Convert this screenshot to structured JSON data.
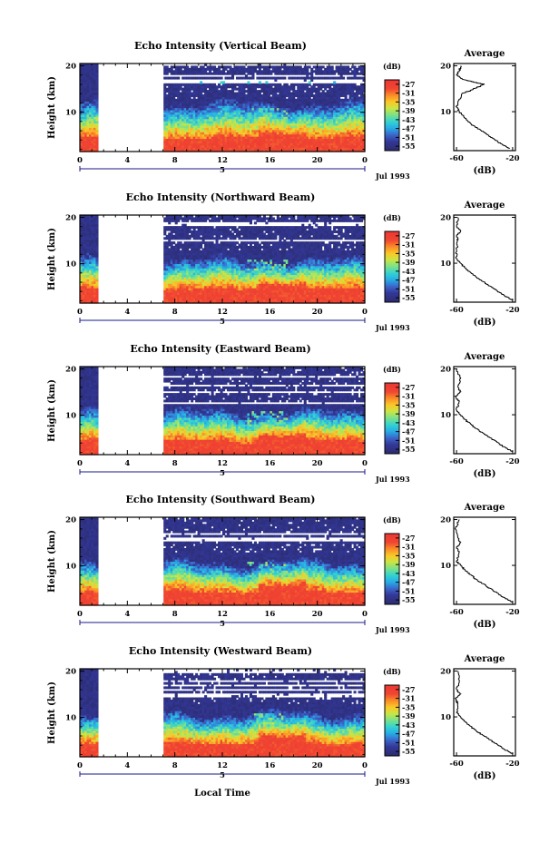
{
  "figure": {
    "date_label": "Jul 1993",
    "day_label": "5",
    "xlabel": "Local Time",
    "ylabel": "Height (km)",
    "avg_title": "Average",
    "avg_xlabel": "(dB)",
    "cb_label": "(dB)"
  },
  "chart_data": [
    {
      "type": "heatmap",
      "title": "Echo Intensity (Vertical Beam)",
      "xlabel": "",
      "ylabel": "Height (km)",
      "xlim": [
        0,
        24
      ],
      "ylim": [
        1.5,
        20.5
      ],
      "x_ticks": [
        "0",
        "4",
        "8",
        "12",
        "16",
        "20",
        "0"
      ],
      "y_ticks": [
        "20",
        "10"
      ],
      "data_gap_hours": [
        1.5,
        7
      ],
      "colorbar": {
        "label": "(dB)",
        "ticks": [
          -27,
          -31,
          -35,
          -39,
          -43,
          -47,
          -51,
          -55
        ]
      },
      "profile_features": {
        "noise_floor_km": 12,
        "layer_km": 16.5
      },
      "average_profile": {
        "title": "Average",
        "xlabel": "(dB)",
        "x_ticks": [
          "-60",
          "-20"
        ],
        "y_ticks": [
          "20",
          "10"
        ],
        "x": [
          -22,
          -28,
          -33,
          -38,
          -43,
          -48,
          -52,
          -55,
          -58,
          -60,
          -59,
          -56,
          -40,
          -55,
          -60,
          -58,
          -57
        ],
        "y": [
          2,
          3,
          4,
          5,
          6,
          7,
          8,
          9,
          10,
          11,
          12,
          14,
          16,
          17,
          18,
          19,
          20
        ]
      }
    },
    {
      "type": "heatmap",
      "title": "Echo Intensity (Northward Beam)",
      "xlabel": "",
      "ylabel": "Height (km)",
      "xlim": [
        0,
        24
      ],
      "ylim": [
        1.5,
        20.5
      ],
      "x_ticks": [
        "0",
        "4",
        "8",
        "12",
        "16",
        "20",
        "0"
      ],
      "y_ticks": [
        "20",
        "10"
      ],
      "data_gap_hours": [
        1.5,
        7
      ],
      "colorbar": {
        "label": "(dB)",
        "ticks": [
          -27,
          -31,
          -35,
          -39,
          -43,
          -47,
          -51,
          -55
        ]
      },
      "profile_features": {
        "noise_floor_km": 11,
        "layer_km": 0
      },
      "average_profile": {
        "title": "Average",
        "xlabel": "(dB)",
        "x_ticks": [
          "-60",
          "-20"
        ],
        "y_ticks": [
          "20",
          "10"
        ],
        "x": [
          -20,
          -26,
          -31,
          -36,
          -41,
          -46,
          -50,
          -54,
          -57,
          -60,
          -60,
          -59,
          -60,
          -57,
          -60,
          -59
        ],
        "y": [
          2,
          3,
          4,
          5,
          6,
          7,
          8,
          9,
          10,
          11,
          13,
          15,
          16,
          17,
          18,
          20
        ]
      }
    },
    {
      "type": "heatmap",
      "title": "Echo Intensity (Eastward Beam)",
      "xlabel": "",
      "ylabel": "Height (km)",
      "xlim": [
        0,
        24
      ],
      "ylim": [
        1.5,
        20.5
      ],
      "x_ticks": [
        "0",
        "4",
        "8",
        "12",
        "16",
        "20",
        "0"
      ],
      "y_ticks": [
        "20",
        "10"
      ],
      "data_gap_hours": [
        1.5,
        7
      ],
      "colorbar": {
        "label": "(dB)",
        "ticks": [
          -27,
          -31,
          -35,
          -39,
          -43,
          -47,
          -51,
          -55
        ]
      },
      "profile_features": {
        "noise_floor_km": 11,
        "layer_km": 0
      },
      "average_profile": {
        "title": "Average",
        "xlabel": "(dB)",
        "x_ticks": [
          "-60",
          "-20"
        ],
        "y_ticks": [
          "20",
          "10"
        ],
        "x": [
          -20,
          -26,
          -31,
          -36,
          -41,
          -46,
          -50,
          -54,
          -57,
          -60,
          -58,
          -61,
          -57,
          -59,
          -57,
          -60
        ],
        "y": [
          2,
          3,
          4,
          5,
          6,
          7,
          8,
          9,
          10,
          11,
          13,
          14,
          15,
          16,
          18,
          20
        ]
      }
    },
    {
      "type": "heatmap",
      "title": "Echo Intensity (Southward Beam)",
      "xlabel": "",
      "ylabel": "Height (km)",
      "xlim": [
        0,
        24
      ],
      "ylim": [
        1.5,
        20.5
      ],
      "x_ticks": [
        "0",
        "4",
        "8",
        "12",
        "16",
        "20",
        "0"
      ],
      "y_ticks": [
        "20",
        "10"
      ],
      "data_gap_hours": [
        1.5,
        7
      ],
      "colorbar": {
        "label": "(dB)",
        "ticks": [
          -27,
          -31,
          -35,
          -39,
          -43,
          -47,
          -51,
          -55
        ]
      },
      "profile_features": {
        "noise_floor_km": 11,
        "layer_km": 0
      },
      "average_profile": {
        "title": "Average",
        "xlabel": "(dB)",
        "x_ticks": [
          "-60",
          "-20"
        ],
        "y_ticks": [
          "20",
          "10"
        ],
        "x": [
          -20,
          -26,
          -31,
          -36,
          -41,
          -46,
          -50,
          -54,
          -57,
          -60,
          -58,
          -60,
          -57,
          -59,
          -61,
          -58
        ],
        "y": [
          2,
          3,
          4,
          5,
          6,
          7,
          8,
          9,
          10,
          11,
          13,
          14,
          15,
          16,
          18,
          20
        ]
      }
    },
    {
      "type": "heatmap",
      "title": "Echo Intensity (Westward Beam)",
      "xlabel": "Local Time",
      "ylabel": "Height (km)",
      "xlim": [
        0,
        24
      ],
      "ylim": [
        1.5,
        20.5
      ],
      "x_ticks": [
        "0",
        "4",
        "8",
        "12",
        "16",
        "20",
        "0"
      ],
      "y_ticks": [
        "20",
        "10"
      ],
      "data_gap_hours": [
        1.5,
        7
      ],
      "colorbar": {
        "label": "(dB)",
        "ticks": [
          -27,
          -31,
          -35,
          -39,
          -43,
          -47,
          -51,
          -55
        ]
      },
      "profile_features": {
        "noise_floor_km": 11,
        "layer_km": 0
      },
      "average_profile": {
        "title": "Average",
        "xlabel": "(dB)",
        "x_ticks": [
          "-60",
          "-20"
        ],
        "y_ticks": [
          "20",
          "10"
        ],
        "x": [
          -20,
          -26,
          -31,
          -36,
          -41,
          -46,
          -50,
          -54,
          -57,
          -60,
          -59,
          -61,
          -57,
          -60,
          -58,
          -59
        ],
        "y": [
          2,
          3,
          4,
          5,
          6,
          7,
          8,
          9,
          10,
          11,
          13,
          14,
          15,
          16,
          18,
          20
        ]
      }
    }
  ]
}
